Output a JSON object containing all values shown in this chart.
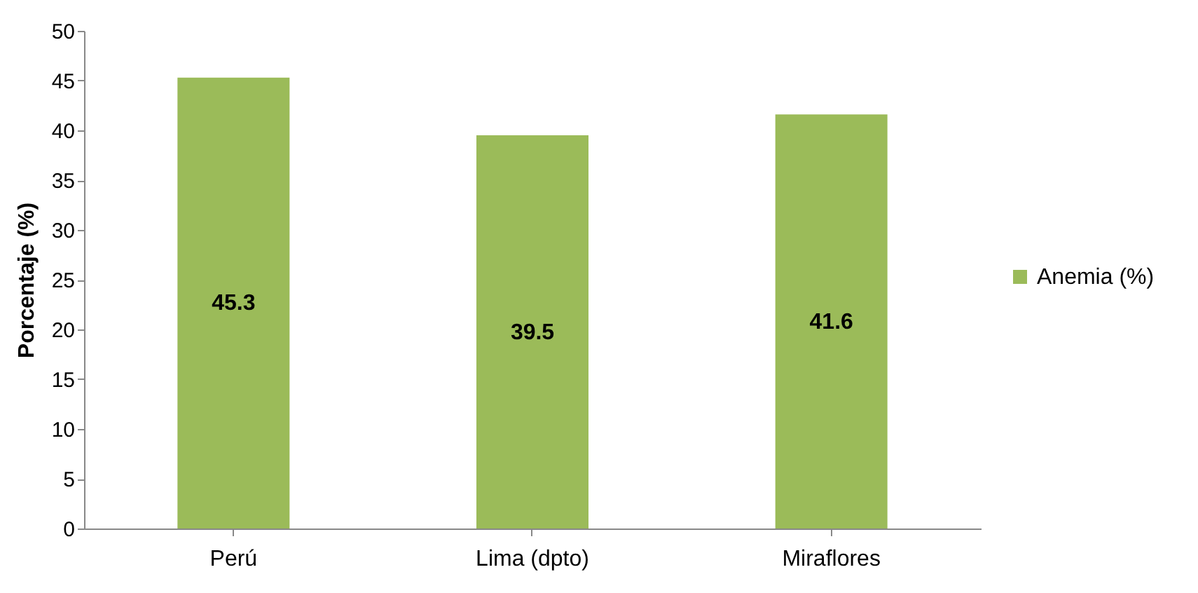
{
  "chart_data": {
    "type": "bar",
    "ylabel": "Porcentaje (%)",
    "categories": [
      "Perú",
      "Lima (dpto)",
      "Miraflores"
    ],
    "series": [
      {
        "name": "Anemia (%)",
        "color": "#9bbb59",
        "values": [
          45.3,
          39.5,
          41.6
        ]
      }
    ],
    "ylim": [
      0,
      50
    ],
    "yticks": [
      0,
      5,
      10,
      15,
      20,
      25,
      30,
      35,
      40,
      45,
      50
    ],
    "grid": false,
    "legend": "right",
    "data_labels": true
  }
}
